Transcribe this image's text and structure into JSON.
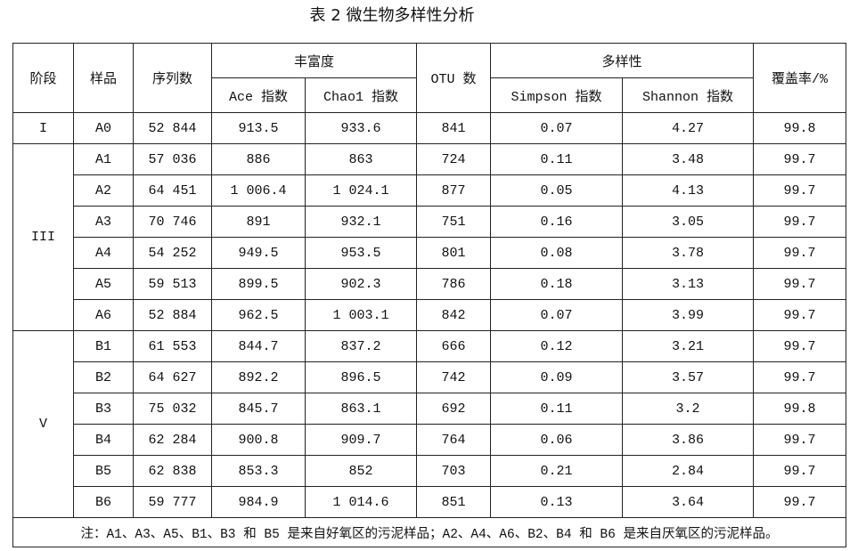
{
  "title": "表 2  微生物多样性分析",
  "headers": {
    "stage": "阶段",
    "sample": "样品",
    "sequences": "序列数",
    "richness": "丰富度",
    "ace": "Ace 指数",
    "chao1": "Chao1 指数",
    "otu": "OTU 数",
    "diversity": "多样性",
    "simpson": "Simpson 指数",
    "shannon": "Shannon 指数",
    "coverage": "覆盖率/%"
  },
  "groups": [
    {
      "stage": "I",
      "rows": [
        [
          "A0",
          "52 844",
          "913.5",
          "933.6",
          "841",
          "0.07",
          "4.27",
          "99.8"
        ]
      ]
    },
    {
      "stage": "III",
      "rows": [
        [
          "A1",
          "57 036",
          "886",
          "863",
          "724",
          "0.11",
          "3.48",
          "99.7"
        ],
        [
          "A2",
          "64 451",
          "1 006.4",
          "1 024.1",
          "877",
          "0.05",
          "4.13",
          "99.7"
        ],
        [
          "A3",
          "70 746",
          "891",
          "932.1",
          "751",
          "0.16",
          "3.05",
          "99.7"
        ],
        [
          "A4",
          "54 252",
          "949.5",
          "953.5",
          "801",
          "0.08",
          "3.78",
          "99.7"
        ],
        [
          "A5",
          "59 513",
          "899.5",
          "902.3",
          "786",
          "0.18",
          "3.13",
          "99.7"
        ],
        [
          "A6",
          "52 884",
          "962.5",
          "1 003.1",
          "842",
          "0.07",
          "3.99",
          "99.7"
        ]
      ]
    },
    {
      "stage": "V",
      "rows": [
        [
          "B1",
          "61 553",
          "844.7",
          "837.2",
          "666",
          "0.12",
          "3.21",
          "99.7"
        ],
        [
          "B2",
          "64 627",
          "892.2",
          "896.5",
          "742",
          "0.09",
          "3.57",
          "99.7"
        ],
        [
          "B3",
          "75 032",
          "845.7",
          "863.1",
          "692",
          "0.11",
          "3.2",
          "99.8"
        ],
        [
          "B4",
          "62 284",
          "900.8",
          "909.7",
          "764",
          "0.06",
          "3.86",
          "99.7"
        ],
        [
          "B5",
          "62 838",
          "853.3",
          "852",
          "703",
          "0.21",
          "2.84",
          "99.7"
        ],
        [
          "B6",
          "59 777",
          "984.9",
          "1 014.6",
          "851",
          "0.13",
          "3.64",
          "99.7"
        ]
      ]
    }
  ],
  "note": "注：A1、A3、A5、B1、B3 和 B5 是来自好氧区的污泥样品；A2、A4、A6、B2、B4 和 B6 是来自厌氧区的污泥样品。"
}
